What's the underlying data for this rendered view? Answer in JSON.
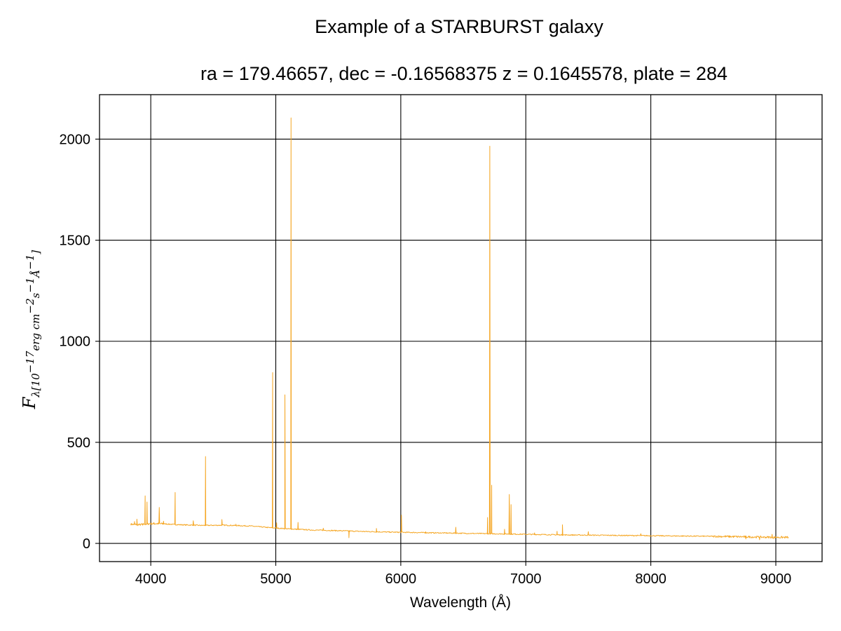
{
  "chart_data": {
    "type": "line",
    "title": "Example of a STARBURST galaxy",
    "subtitle": "ra = 179.46657, dec = -0.16568375 z = 0.1645578, plate = 284",
    "xlabel": "Wavelength (Å)",
    "ylabel_main": "F",
    "ylabel_sub": "λ[10",
    "ylabel_sup1": "−17",
    "ylabel_mid": "erg cm",
    "ylabel_sup2": "−2",
    "ylabel_mid2": "s",
    "ylabel_sup3": "−1",
    "ylabel_mid3": "Å",
    "ylabel_sup4": "−1",
    "ylabel_end": "]",
    "xlim": [
      3590,
      9370
    ],
    "ylim": [
      -90,
      2220
    ],
    "xticks": [
      4000,
      5000,
      6000,
      7000,
      8000,
      9000
    ],
    "yticks": [
      0,
      500,
      1000,
      1500,
      2000
    ],
    "grid": true,
    "series_color": "#f5a623",
    "continuum": [
      [
        3840,
        95
      ],
      [
        3900,
        92
      ],
      [
        4000,
        98
      ],
      [
        4100,
        97
      ],
      [
        4200,
        93
      ],
      [
        4400,
        89
      ],
      [
        4600,
        90
      ],
      [
        4800,
        86
      ],
      [
        4950,
        78
      ],
      [
        5000,
        76
      ],
      [
        5100,
        72
      ],
      [
        5300,
        66
      ],
      [
        5500,
        63
      ],
      [
        5700,
        59
      ],
      [
        5900,
        56
      ],
      [
        6000,
        55
      ],
      [
        6200,
        53
      ],
      [
        6500,
        50
      ],
      [
        6700,
        48
      ],
      [
        7000,
        45
      ],
      [
        7300,
        42
      ],
      [
        7500,
        41
      ],
      [
        8000,
        38
      ],
      [
        8500,
        35
      ],
      [
        8800,
        32
      ],
      [
        9000,
        30
      ],
      [
        9100,
        30
      ]
    ],
    "lines": [
      [
        3870,
        108
      ],
      [
        3889,
        120
      ],
      [
        3935,
        90
      ],
      [
        3955,
        235
      ],
      [
        3970,
        205
      ],
      [
        4026,
        102
      ],
      [
        4068,
        178
      ],
      [
        4102,
        110
      ],
      [
        4195,
        252
      ],
      [
        4340,
        112
      ],
      [
        4438,
        430
      ],
      [
        4569,
        118
      ],
      [
        4681,
        95
      ],
      [
        4975,
        845
      ],
      [
        5007,
        102
      ],
      [
        5073,
        735
      ],
      [
        5122,
        2105
      ],
      [
        5178,
        104
      ],
      [
        5380,
        75
      ],
      [
        5585,
        28
      ],
      [
        5805,
        74
      ],
      [
        6005,
        140
      ],
      [
        6198,
        58
      ],
      [
        6440,
        80
      ],
      [
        6694,
        128
      ],
      [
        6712,
        1965
      ],
      [
        6727,
        288
      ],
      [
        6830,
        70
      ],
      [
        6868,
        242
      ],
      [
        6882,
        192
      ],
      [
        7070,
        52
      ],
      [
        7250,
        60
      ],
      [
        7293,
        92
      ],
      [
        7500,
        58
      ],
      [
        7920,
        48
      ],
      [
        8760,
        22
      ],
      [
        8870,
        18
      ],
      [
        8970,
        45
      ],
      [
        8980,
        24
      ]
    ]
  }
}
